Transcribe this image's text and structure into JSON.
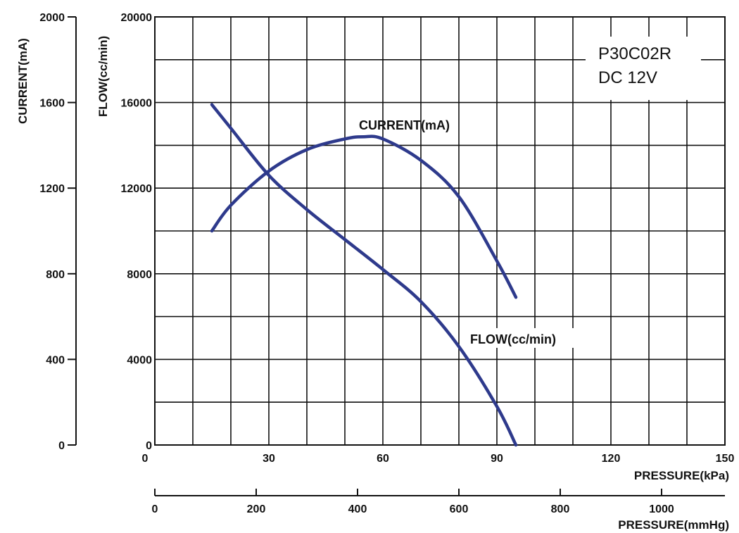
{
  "chart_data": {
    "type": "line",
    "model_label": "P30C02R",
    "voltage_label": "DC 12V",
    "left_axis_current": {
      "label": "CURRENT(mA)",
      "range": [
        0,
        2000
      ],
      "ticks": [
        0,
        400,
        800,
        1200,
        1600,
        2000
      ]
    },
    "left_axis_flow": {
      "label": "FLOW(cc/min)",
      "range": [
        0,
        20000
      ],
      "ticks": [
        0,
        4000,
        8000,
        12000,
        16000,
        20000
      ]
    },
    "x_axis_kpa": {
      "label": "PRESSURE(kPa)",
      "range": [
        0,
        150
      ],
      "ticks": [
        0,
        30,
        60,
        90,
        120,
        150
      ]
    },
    "x_axis_mmhg": {
      "label": "PRESSURE(mmHg)",
      "range": [
        0,
        1125
      ],
      "ticks": [
        0,
        200,
        400,
        600,
        800,
        1000
      ]
    },
    "grid": true,
    "series": [
      {
        "name": "CURRENT(mA)",
        "axis": "current",
        "color": "#2e3a8c",
        "points": [
          [
            15,
            1000
          ],
          [
            20,
            1120
          ],
          [
            30,
            1280
          ],
          [
            40,
            1380
          ],
          [
            50,
            1430
          ],
          [
            55,
            1440
          ],
          [
            60,
            1430
          ],
          [
            70,
            1330
          ],
          [
            80,
            1160
          ],
          [
            90,
            860
          ],
          [
            95,
            690
          ]
        ]
      },
      {
        "name": "FLOW(cc/min)",
        "axis": "flow",
        "color": "#2e3a8c",
        "points": [
          [
            15,
            15900
          ],
          [
            20,
            14800
          ],
          [
            30,
            12600
          ],
          [
            40,
            11000
          ],
          [
            50,
            9600
          ],
          [
            60,
            8200
          ],
          [
            70,
            6700
          ],
          [
            80,
            4600
          ],
          [
            90,
            1800
          ],
          [
            95,
            0
          ]
        ]
      }
    ]
  }
}
